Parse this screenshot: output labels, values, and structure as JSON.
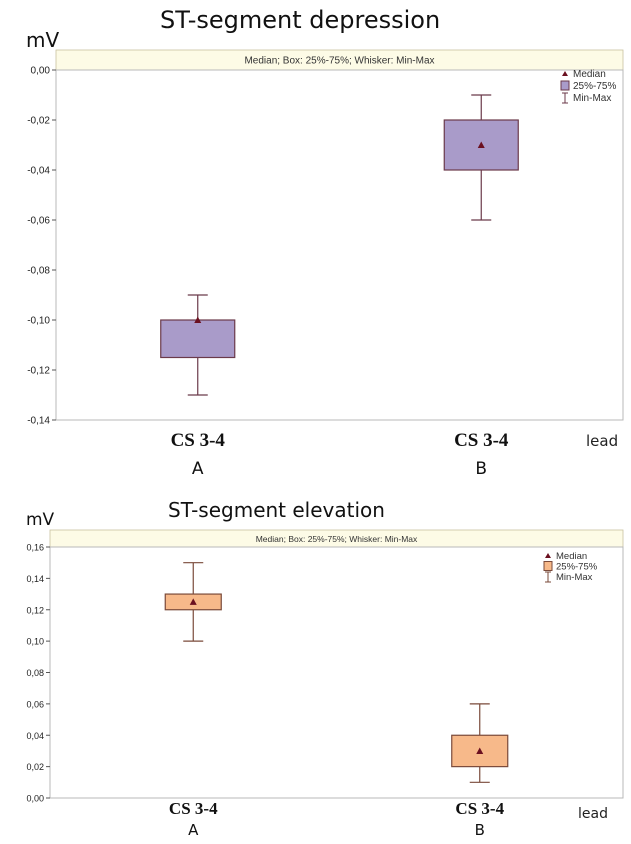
{
  "chart_data": [
    {
      "type": "boxplot",
      "title": "ST-segment depression",
      "subtitle": "Median; Box: 25%-75%; Whisker: Min-Max",
      "ylabel": "mV",
      "xlabel": "lead",
      "ylim": [
        -0.14,
        0.0
      ],
      "yticks": [
        0.0,
        -0.02,
        -0.04,
        -0.06,
        -0.08,
        -0.1,
        -0.12,
        -0.14
      ],
      "ytick_labels": [
        "0,00",
        "-0,02",
        "-0,04",
        "-0,06",
        "-0,08",
        "-0,10",
        "-0,12",
        "-0,14"
      ],
      "categories": [
        {
          "lead": "CS 3-4",
          "group": "A"
        },
        {
          "lead": "CS 3-4",
          "group": "B"
        }
      ],
      "boxes": [
        {
          "min": -0.13,
          "q1": -0.115,
          "median": -0.1,
          "q3": -0.1,
          "max": -0.09
        },
        {
          "min": -0.06,
          "q1": -0.04,
          "median": -0.03,
          "q3": -0.02,
          "max": -0.01
        }
      ],
      "legend": [
        "Median",
        "25%-75%",
        "Min-Max"
      ],
      "legend_position": "top-right",
      "box_color": "#a99bc9",
      "edge_color": "#6b3a4a",
      "grid": false
    },
    {
      "type": "boxplot",
      "title": "ST-segment elevation",
      "subtitle": "Median; Box: 25%-75%; Whisker: Min-Max",
      "ylabel": "mV",
      "xlabel": "lead",
      "ylim": [
        0.0,
        0.16
      ],
      "yticks": [
        0.16,
        0.14,
        0.12,
        0.1,
        0.08,
        0.06,
        0.04,
        0.02,
        0.0
      ],
      "ytick_labels": [
        "0,16",
        "0,14",
        "0,12",
        "0,10",
        "0,08",
        "0,06",
        "0,04",
        "0,02",
        "0,00"
      ],
      "categories": [
        {
          "lead": "CS 3-4",
          "group": "A"
        },
        {
          "lead": "CS 3-4",
          "group": "B"
        }
      ],
      "boxes": [
        {
          "min": 0.1,
          "q1": 0.12,
          "median": 0.125,
          "q3": 0.13,
          "max": 0.15
        },
        {
          "min": 0.01,
          "q1": 0.02,
          "median": 0.03,
          "q3": 0.04,
          "max": 0.06
        }
      ],
      "legend": [
        "Median",
        "25%-75%",
        "Min-Max"
      ],
      "legend_position": "top-right",
      "box_color": "#f7b98a",
      "edge_color": "#7a4a3a",
      "grid": false
    }
  ]
}
